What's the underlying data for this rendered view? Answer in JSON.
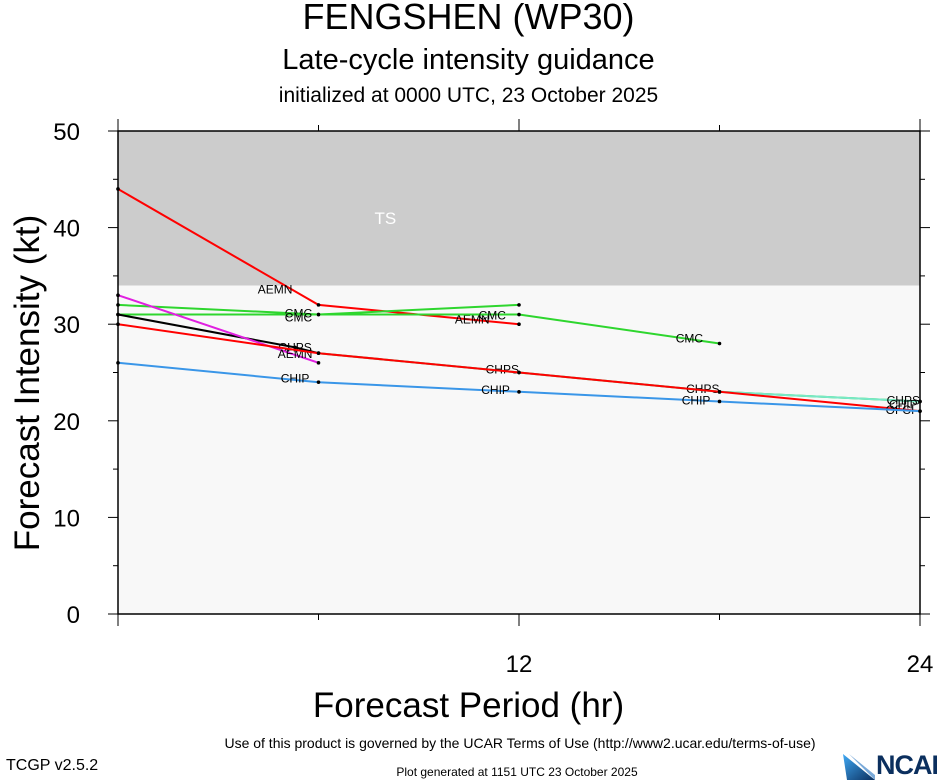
{
  "header": {
    "title": "FENGSHEN (WP30)",
    "subtitle": "Late-cycle intensity guidance",
    "initialized": "initialized at 0000 UTC, 23 October 2025"
  },
  "footer": {
    "terms": "Use of this product is governed by the UCAR Terms of Use (http://www2.ucar.edu/terms-of-use)",
    "version": "TCGP v2.5.2",
    "generated": "Plot generated at 1151 UTC   23 October 2025",
    "logo_text": "NCAR"
  },
  "colors": {
    "ts_band": "#cccccc",
    "below_band": "#f8f8f8"
  },
  "chart_data": {
    "type": "line",
    "title": "FENGSHEN (WP30)",
    "xlabel": "Forecast Period (hr)",
    "ylabel": "Forecast Intensity (kt)",
    "xlim": [
      0,
      24
    ],
    "ylim": [
      0,
      50
    ],
    "xticks": [
      12,
      24
    ],
    "yticks": [
      0,
      10,
      20,
      30,
      40,
      50
    ],
    "bands": [
      {
        "label": "TS",
        "from": 34,
        "to": 50,
        "color": "#cccccc"
      },
      {
        "label": "",
        "from": 0,
        "to": 34,
        "color": "#f8f8f8"
      }
    ],
    "series": [
      {
        "color": "#ff0000",
        "x": [
          0,
          6,
          12
        ],
        "y": [
          44,
          32,
          30
        ],
        "labels": [
          {
            "text": "AEMN",
            "x": 4.7,
            "y": 33.6
          },
          {
            "text": "AEMN",
            "x": 10.6,
            "y": 30.5
          }
        ]
      },
      {
        "color": "#2ed62e",
        "x": [
          0,
          6,
          12
        ],
        "y": [
          32,
          31,
          32
        ],
        "labels": [
          {
            "text": "CMC",
            "x": 5.4,
            "y": 31.1
          }
        ]
      },
      {
        "color": "#2ed62e",
        "x": [
          0,
          6,
          12,
          18
        ],
        "y": [
          31,
          31,
          31,
          28
        ],
        "labels": [
          {
            "text": "CMC",
            "x": 5.4,
            "y": 30.7
          },
          {
            "text": "CMC",
            "x": 11.2,
            "y": 30.9
          },
          {
            "text": "CMC",
            "x": 17.1,
            "y": 28.5
          }
        ]
      },
      {
        "color": "#000000",
        "x": [
          0,
          5.3,
          6
        ],
        "y": [
          31,
          27.6,
          27
        ],
        "labels": [
          {
            "text": "CHPS",
            "x": 5.3,
            "y": 27.6
          }
        ]
      },
      {
        "color": "#e020e0",
        "x": [
          0,
          6
        ],
        "y": [
          33,
          26
        ],
        "labels": [
          {
            "text": "AEMN",
            "x": 5.3,
            "y": 26.9
          }
        ]
      },
      {
        "color": "#2ed62e",
        "x": [
          6,
          12,
          18,
          24
        ],
        "y": [
          27,
          25,
          23,
          22
        ],
        "labels": []
      },
      {
        "color": "#78e8c8",
        "x": [
          6,
          12,
          18,
          24
        ],
        "y": [
          27,
          25,
          23,
          22
        ],
        "labels": [
          {
            "text": "CHPS",
            "x": 11.5,
            "y": 25.3
          },
          {
            "text": "CHPS",
            "x": 17.5,
            "y": 23.3
          },
          {
            "text": "CHPS",
            "x": 23.5,
            "y": 22.1
          }
        ]
      },
      {
        "color": "#ff0000",
        "x": [
          0,
          6,
          12,
          18,
          24
        ],
        "y": [
          30,
          27,
          25,
          23,
          21
        ],
        "labels": [
          {
            "text": "OFCI",
            "x": 23.4,
            "y": 21.1
          }
        ]
      },
      {
        "color": "#3a96e8",
        "x": [
          0,
          6,
          12,
          18,
          24
        ],
        "y": [
          26,
          24,
          23,
          22,
          21
        ],
        "labels": [
          {
            "text": "CHIP",
            "x": 5.3,
            "y": 24.4
          },
          {
            "text": "CHIP",
            "x": 11.3,
            "y": 23.2
          },
          {
            "text": "CHIP",
            "x": 17.3,
            "y": 22.1
          },
          {
            "text": "CHIP",
            "x": 23.5,
            "y": 21.7
          }
        ]
      }
    ]
  }
}
